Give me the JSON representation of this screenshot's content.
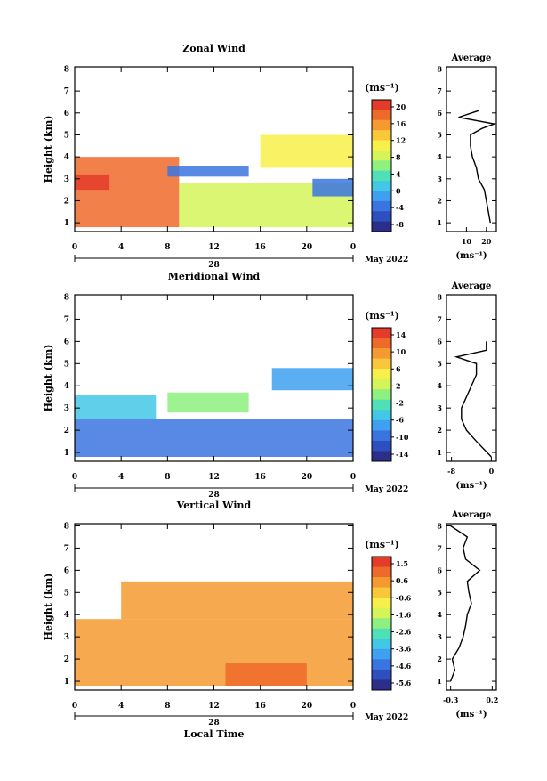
{
  "chart_data": [
    {
      "type": "heatmap",
      "title": "Zonal Wind",
      "ylabel": "Height (km)",
      "xlabel": "",
      "x_ticks": [
        "0",
        "4",
        "8",
        "12",
        "16",
        "20",
        "0"
      ],
      "y_ticks": [
        "1",
        "2",
        "3",
        "4",
        "5",
        "6",
        "7",
        "8"
      ],
      "date_label": "28",
      "month_label": "May 2022",
      "xlim": [
        0,
        24
      ],
      "ylim": [
        0.6,
        8.1
      ],
      "colorbar": {
        "unit": "(ms⁻¹)",
        "ticks": [
          "20",
          "16",
          "12",
          "8",
          "4",
          "0",
          "-4",
          "-8"
        ],
        "range": [
          -10,
          22
        ]
      },
      "regions": [
        {
          "x": [
            0,
            9
          ],
          "y": [
            0.8,
            4.0
          ],
          "v": 19
        },
        {
          "x": [
            0,
            3
          ],
          "y": [
            2.5,
            3.2
          ],
          "v": 21
        },
        {
          "x": [
            9,
            24
          ],
          "y": [
            0.8,
            2.8
          ],
          "v": 8
        },
        {
          "x": [
            8,
            15
          ],
          "y": [
            3.1,
            3.6
          ],
          "v": -4
        },
        {
          "x": [
            20.5,
            24
          ],
          "y": [
            2.2,
            3.0
          ],
          "v": -3
        },
        {
          "x": [
            16,
            24
          ],
          "y": [
            3.5,
            5.0
          ],
          "v": 12
        }
      ],
      "profile": {
        "title": "Average",
        "xlabel": "(ms⁻¹)",
        "x_ticks": [
          "10",
          "20"
        ],
        "xlim": [
          0,
          25
        ],
        "heights": [
          1.0,
          1.5,
          2.0,
          2.5,
          3.0,
          3.5,
          4.0,
          4.5,
          5.0,
          5.3,
          5.5,
          5.8,
          6.1
        ],
        "values": [
          22,
          21,
          20,
          19,
          16,
          15,
          13,
          12,
          12,
          18,
          24,
          6,
          16
        ]
      }
    },
    {
      "type": "heatmap",
      "title": "Meridional Wind",
      "ylabel": "Height (km)",
      "xlabel": "",
      "x_ticks": [
        "0",
        "4",
        "8",
        "12",
        "16",
        "20",
        "0"
      ],
      "y_ticks": [
        "1",
        "2",
        "3",
        "4",
        "5",
        "6",
        "7",
        "8"
      ],
      "date_label": "28",
      "month_label": "May 2022",
      "xlim": [
        0,
        24
      ],
      "ylim": [
        0.6,
        8.1
      ],
      "colorbar": {
        "unit": "(ms⁻¹)",
        "ticks": [
          "14",
          "10",
          "6",
          "2",
          "-2",
          "-6",
          "-10",
          "-14"
        ],
        "range": [
          -16,
          16
        ]
      },
      "regions": [
        {
          "x": [
            0,
            24
          ],
          "y": [
            0.8,
            2.5
          ],
          "v": -10
        },
        {
          "x": [
            0,
            7
          ],
          "y": [
            2.5,
            3.6
          ],
          "v": -6
        },
        {
          "x": [
            8,
            15
          ],
          "y": [
            2.8,
            3.7
          ],
          "v": 1
        },
        {
          "x": [
            17,
            24
          ],
          "y": [
            3.8,
            4.8
          ],
          "v": -8
        }
      ],
      "profile": {
        "title": "Average",
        "xlabel": "(ms⁻¹)",
        "x_ticks": [
          "-8",
          "0"
        ],
        "xlim": [
          -9,
          1
        ],
        "heights": [
          0.8,
          1.5,
          2.0,
          2.5,
          3.0,
          3.5,
          4.0,
          4.5,
          5.0,
          5.3,
          5.6,
          6.0
        ],
        "values": [
          0,
          -3,
          -5,
          -6,
          -6,
          -5,
          -4,
          -3,
          -3,
          -7,
          -1,
          -1
        ]
      }
    },
    {
      "type": "heatmap",
      "title": "Vertical Wind",
      "ylabel": "Height (km)",
      "xlabel": "Local Time",
      "x_ticks": [
        "0",
        "4",
        "8",
        "12",
        "16",
        "20",
        "0"
      ],
      "y_ticks": [
        "1",
        "2",
        "3",
        "4",
        "5",
        "6",
        "7",
        "8"
      ],
      "date_label": "28",
      "month_label": "May 2022",
      "xlim": [
        0,
        24
      ],
      "ylim": [
        0.6,
        8.1
      ],
      "colorbar": {
        "unit": "(ms⁻¹)",
        "ticks": [
          "1.5",
          "0.6",
          "-0.6",
          "-1.6",
          "-2.6",
          "-3.6",
          "-4.6",
          "-5.6"
        ],
        "range": [
          -6,
          2
        ]
      },
      "regions": [
        {
          "x": [
            0,
            24
          ],
          "y": [
            0.8,
            3.8
          ],
          "v": 0.2
        },
        {
          "x": [
            13,
            20
          ],
          "y": [
            0.8,
            1.8
          ],
          "v": 1.2
        },
        {
          "x": [
            4,
            24
          ],
          "y": [
            3.8,
            5.5
          ],
          "v": 0.3
        }
      ],
      "profile": {
        "title": "Average",
        "xlabel": "(ms⁻¹)",
        "x_ticks": [
          "-0.3",
          "0.2"
        ],
        "xlim": [
          -0.35,
          0.25
        ],
        "heights": [
          1.0,
          1.5,
          2.0,
          2.5,
          3.0,
          3.5,
          4.0,
          4.5,
          5.0,
          5.5,
          6.0,
          6.5,
          7.0,
          7.5,
          8.0
        ],
        "values": [
          -0.3,
          -0.25,
          -0.28,
          -0.2,
          -0.15,
          -0.12,
          -0.1,
          -0.05,
          -0.08,
          -0.1,
          0.05,
          -0.12,
          -0.15,
          -0.1,
          -0.3
        ]
      }
    }
  ]
}
